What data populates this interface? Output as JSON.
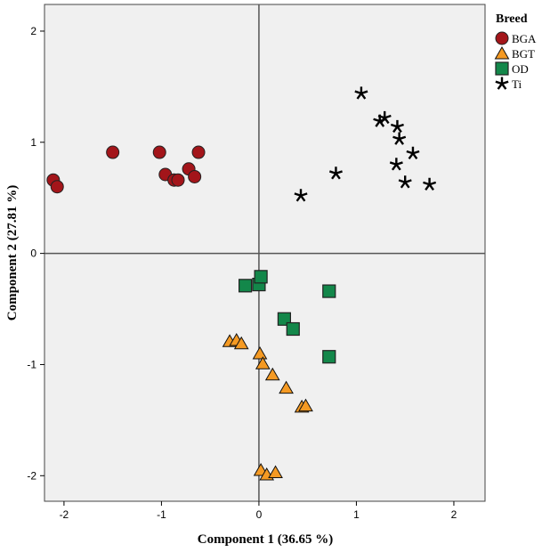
{
  "chart_data": {
    "type": "scatter",
    "title": "",
    "xlabel": "Component 1 (36.65 %)",
    "ylabel": "Component 2 (27.81 %)",
    "xlim": [
      -2.2,
      2.32
    ],
    "ylim": [
      -2.23,
      2.24
    ],
    "xticks": [
      "-2",
      "-1",
      "0",
      "1",
      "2"
    ],
    "yticks": [
      "2",
      "1",
      "0",
      "-1",
      "-2"
    ],
    "xtick_values": [
      -2,
      -1,
      0,
      1,
      2
    ],
    "ytick_values": [
      2,
      1,
      0,
      -1,
      -2
    ],
    "grid": false,
    "reference_lines": {
      "x": 0,
      "y": 0
    },
    "legend": {
      "title": "Breed",
      "placement": "right"
    },
    "series": [
      {
        "name": "BGA",
        "marker": "circle",
        "color": "#a3151a",
        "points": [
          [
            -2.11,
            0.66
          ],
          [
            -2.07,
            0.6
          ],
          [
            -1.5,
            0.91
          ],
          [
            -1.02,
            0.91
          ],
          [
            -0.96,
            0.71
          ],
          [
            -0.87,
            0.66
          ],
          [
            -0.83,
            0.66
          ],
          [
            -0.72,
            0.76
          ],
          [
            -0.66,
            0.69
          ],
          [
            -0.62,
            0.91
          ]
        ]
      },
      {
        "name": "BGT",
        "marker": "triangle",
        "color": "#f59a23",
        "points": [
          [
            -0.3,
            -0.79
          ],
          [
            -0.23,
            -0.78
          ],
          [
            -0.18,
            -0.81
          ],
          [
            0.01,
            -0.9
          ],
          [
            0.04,
            -0.99
          ],
          [
            0.14,
            -1.09
          ],
          [
            0.28,
            -1.21
          ],
          [
            0.44,
            -1.38
          ],
          [
            0.48,
            -1.37
          ],
          [
            0.02,
            -1.95
          ],
          [
            0.08,
            -1.99
          ],
          [
            0.17,
            -1.97
          ]
        ]
      },
      {
        "name": "OD",
        "marker": "square",
        "color": "#13874a",
        "points": [
          [
            -0.14,
            -0.29
          ],
          [
            0.0,
            -0.28
          ],
          [
            0.02,
            -0.21
          ],
          [
            0.26,
            -0.59
          ],
          [
            0.35,
            -0.68
          ],
          [
            0.72,
            -0.34
          ],
          [
            0.72,
            -0.93
          ]
        ]
      },
      {
        "name": "Ti",
        "marker": "star",
        "color": "#000000",
        "points": [
          [
            1.05,
            1.44
          ],
          [
            1.24,
            1.19
          ],
          [
            1.29,
            1.22
          ],
          [
            1.42,
            1.14
          ],
          [
            1.44,
            1.03
          ],
          [
            1.58,
            0.9
          ],
          [
            1.41,
            0.8
          ],
          [
            1.5,
            0.64
          ],
          [
            1.75,
            0.62
          ],
          [
            0.79,
            0.72
          ],
          [
            0.43,
            0.52
          ]
        ]
      }
    ]
  }
}
